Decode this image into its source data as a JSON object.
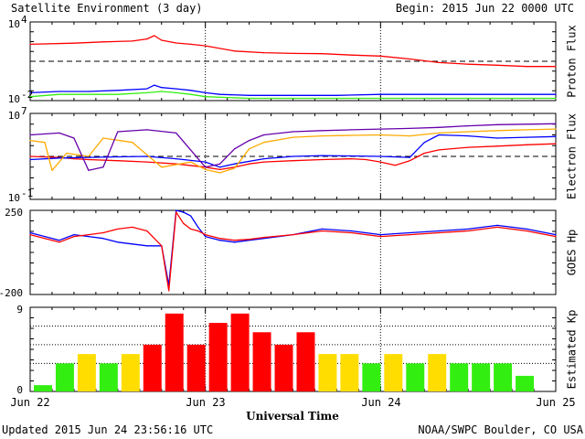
{
  "header": {
    "title": "Satellite Environment (3 day)",
    "begin": "Begin:  2015 Jun 22 0000 UTC"
  },
  "footer": {
    "updated": "Updated 2015 Jun 24 23:56:16 UTC",
    "credit": "NOAA/SWPC Boulder, CO USA"
  },
  "x_axis": {
    "label": "Universal Time",
    "ticks": [
      "Jun 22",
      "Jun 23",
      "Jun 24",
      "Jun 25"
    ]
  },
  "colors": {
    "red": "#ff0000",
    "blue": "#0000ff",
    "green": "#33ee11",
    "orange": "#ffaa00",
    "purple": "#6600aa",
    "kp_green": "#33ee11",
    "kp_yellow": "#ffdd00",
    "kp_red": "#ff0000"
  },
  "chart_data": [
    {
      "type": "line",
      "ylabel": "Proton Flux",
      "yscale": "log",
      "ylim": [
        0.01,
        10000
      ],
      "ytick_base": "10",
      "yticks": [
        {
          "base": "10",
          "exp": "4",
          "value": 10000
        },
        {
          "base": "10",
          "exp": "-2",
          "value": 0.01
        }
      ],
      "threshold": 10,
      "x_unit": "hours since Jun 22 0000 UTC",
      "series": [
        {
          "color": "red",
          "x": [
            0,
            6,
            10,
            14,
            16,
            17,
            18,
            20,
            22,
            24,
            28,
            32,
            36,
            40,
            44,
            48,
            52,
            56,
            60,
            64,
            68,
            72
          ],
          "y": [
            200,
            240,
            300,
            350,
            500,
            900,
            400,
            250,
            200,
            150,
            60,
            45,
            40,
            38,
            30,
            25,
            15,
            8,
            6,
            5,
            4,
            4
          ]
        },
        {
          "color": "blue",
          "x": [
            0,
            4,
            8,
            12,
            16,
            17,
            18,
            20,
            22,
            24,
            26,
            30,
            36,
            42,
            48,
            54,
            60,
            66,
            72
          ],
          "y": [
            0.04,
            0.05,
            0.05,
            0.06,
            0.08,
            0.15,
            0.1,
            0.08,
            0.06,
            0.04,
            0.03,
            0.025,
            0.025,
            0.025,
            0.03,
            0.03,
            0.03,
            0.03,
            0.03
          ]
        },
        {
          "color": "green",
          "x": [
            0,
            4,
            8,
            12,
            16,
            18,
            20,
            22,
            24,
            30,
            36,
            42,
            48,
            54,
            60,
            66,
            72
          ],
          "y": [
            0.02,
            0.03,
            0.03,
            0.03,
            0.04,
            0.05,
            0.04,
            0.03,
            0.02,
            0.015,
            0.015,
            0.015,
            0.015,
            0.015,
            0.015,
            0.015,
            0.015
          ]
        }
      ]
    },
    {
      "type": "line",
      "ylabel": "Electron Flux",
      "yscale": "log",
      "ylim": [
        0.1,
        10000000
      ],
      "ytick_base": "10",
      "yticks": [
        {
          "base": "10",
          "exp": "7",
          "value": 10000000
        },
        {
          "base": "10",
          "exp": "-1",
          "value": 0.1
        }
      ],
      "threshold": 1000,
      "x_unit": "hours since Jun 22 0000 UTC",
      "series": [
        {
          "color": "red",
          "x": [
            0,
            4,
            6,
            8,
            12,
            16,
            20,
            24,
            26,
            28,
            30,
            32,
            36,
            40,
            44,
            46,
            48,
            50,
            52,
            54,
            56,
            60,
            64,
            68,
            72
          ],
          "y": [
            1000,
            800,
            600,
            500,
            400,
            300,
            200,
            100,
            60,
            100,
            200,
            300,
            400,
            500,
            600,
            500,
            300,
            150,
            400,
            2000,
            4000,
            7000,
            9000,
            12000,
            15000
          ]
        },
        {
          "color": "blue",
          "x": [
            0,
            4,
            8,
            12,
            16,
            20,
            24,
            26,
            28,
            32,
            36,
            40,
            44,
            48,
            52,
            54,
            56,
            60,
            64,
            68,
            72
          ],
          "y": [
            500,
            700,
            800,
            900,
            1000,
            600,
            300,
            100,
            200,
            600,
            1000,
            1200,
            1100,
            1000,
            800,
            20000,
            100000,
            80000,
            50000,
            60000,
            70000
          ]
        },
        {
          "color": "orange",
          "x": [
            0,
            2,
            3,
            5,
            8,
            10,
            14,
            18,
            22,
            24,
            26,
            28,
            30,
            32,
            36,
            40,
            44,
            48,
            52,
            56,
            60,
            64,
            68,
            72
          ],
          "y": [
            30000,
            20000,
            50,
            2000,
            1000,
            50000,
            20000,
            100,
            300,
            60,
            30,
            80,
            5000,
            20000,
            60000,
            80000,
            90000,
            100000,
            80000,
            150000,
            200000,
            250000,
            300000,
            350000
          ]
        },
        {
          "color": "purple",
          "x": [
            0,
            4,
            6,
            8,
            10,
            12,
            16,
            20,
            24,
            26,
            28,
            30,
            32,
            36,
            40,
            44,
            48,
            52,
            56,
            60,
            64,
            68,
            72
          ],
          "y": [
            100000,
            150000,
            50000,
            50,
            100,
            200000,
            300000,
            150000,
            100,
            200,
            5000,
            30000,
            100000,
            200000,
            250000,
            300000,
            350000,
            400000,
            500000,
            700000,
            900000,
            1000000,
            1100000
          ]
        }
      ]
    },
    {
      "type": "line",
      "ylabel": "GOES Hp",
      "yscale": "linear",
      "ylim": [
        -200,
        250
      ],
      "yticks": [
        {
          "label": "250",
          "value": 250
        },
        {
          "label": "-200",
          "value": -200
        }
      ],
      "x_unit": "hours since Jun 22 0000 UTC",
      "series": [
        {
          "color": "blue",
          "x": [
            0,
            2,
            4,
            6,
            8,
            10,
            12,
            14,
            16,
            18,
            19,
            20,
            21,
            22,
            23,
            24,
            26,
            28,
            30,
            32,
            36,
            40,
            44,
            48,
            52,
            56,
            60,
            64,
            68,
            72
          ],
          "y": [
            130,
            110,
            90,
            120,
            110,
            100,
            80,
            70,
            60,
            60,
            -150,
            250,
            240,
            220,
            160,
            110,
            90,
            80,
            90,
            100,
            120,
            150,
            140,
            120,
            130,
            140,
            150,
            170,
            150,
            120
          ]
        },
        {
          "color": "red",
          "x": [
            0,
            2,
            4,
            6,
            8,
            10,
            12,
            14,
            16,
            18,
            19,
            20,
            21,
            22,
            23,
            24,
            26,
            28,
            30,
            32,
            36,
            40,
            44,
            48,
            52,
            56,
            60,
            64,
            68,
            72
          ],
          "y": [
            120,
            100,
            80,
            110,
            120,
            130,
            150,
            160,
            140,
            60,
            -180,
            240,
            180,
            150,
            140,
            120,
            100,
            90,
            95,
            105,
            120,
            140,
            130,
            110,
            120,
            130,
            140,
            160,
            140,
            110
          ]
        }
      ]
    },
    {
      "type": "bar",
      "ylabel": "Estimated Kp",
      "ylim": [
        0,
        9
      ],
      "yticks": [
        {
          "label": "9",
          "value": 9
        },
        {
          "label": "0",
          "value": 0
        }
      ],
      "bar_width_hours": 3,
      "values": [
        0.67,
        3.0,
        4.0,
        3.0,
        4.0,
        5.0,
        8.33,
        5.0,
        7.33,
        8.33,
        6.33,
        5.0,
        6.33,
        4.0,
        4.0,
        3.0,
        4.0,
        3.0,
        4.0,
        3.0,
        3.0,
        3.0,
        1.67
      ],
      "bar_colors": [
        "kp_green",
        "kp_green",
        "kp_yellow",
        "kp_green",
        "kp_yellow",
        "kp_red",
        "kp_red",
        "kp_red",
        "kp_red",
        "kp_red",
        "kp_red",
        "kp_red",
        "kp_red",
        "kp_yellow",
        "kp_yellow",
        "kp_green",
        "kp_yellow",
        "kp_green",
        "kp_yellow",
        "kp_green",
        "kp_green",
        "kp_green",
        "kp_green"
      ]
    }
  ]
}
